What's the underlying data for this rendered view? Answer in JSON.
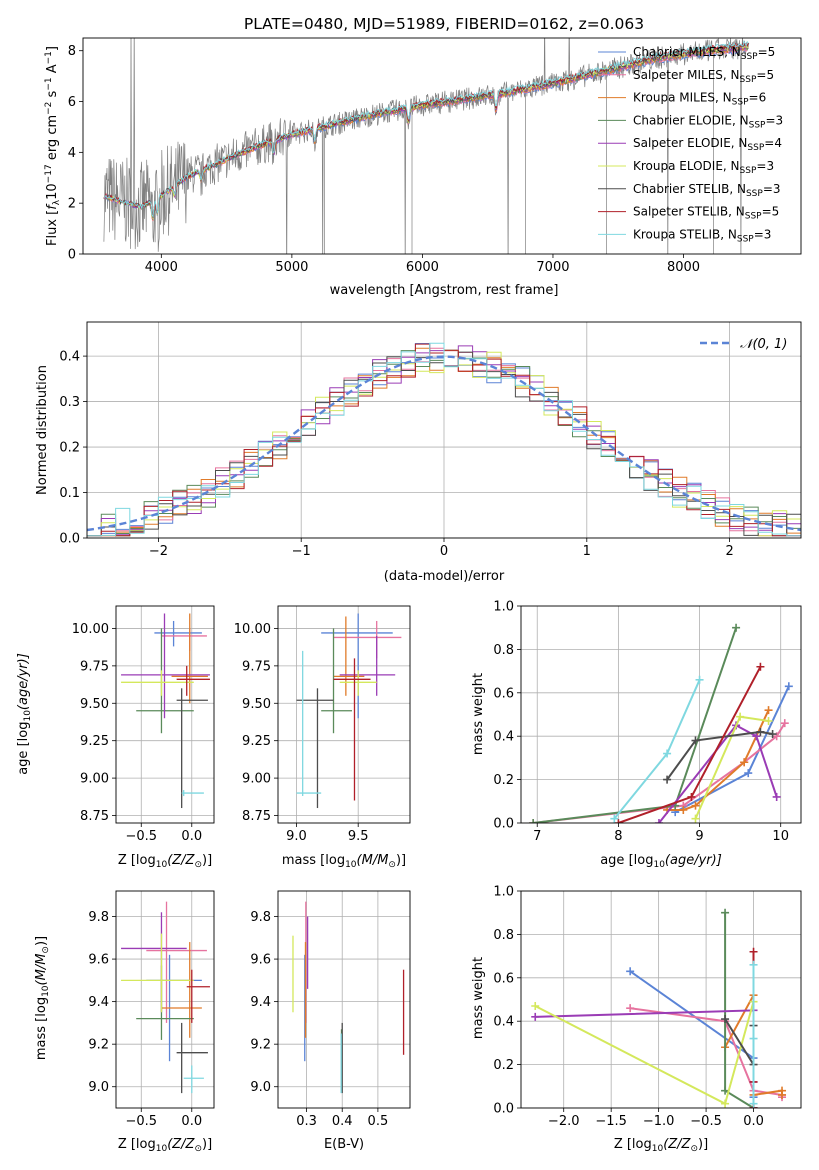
{
  "figure_title": "PLATE=0480, MJD=51989, FIBERID=0162, z=0.063",
  "models": [
    {
      "name": "Chabrier MILES",
      "nssp": "5",
      "color": "#5b84d6"
    },
    {
      "name": "Salpeter MILES",
      "nssp": "5",
      "color": "#e6739f"
    },
    {
      "name": "Kroupa MILES",
      "nssp": "6",
      "color": "#e07b2a"
    },
    {
      "name": "Chabrier ELODIE",
      "nssp": "3",
      "color": "#5a8a5a"
    },
    {
      "name": "Salpeter ELODIE",
      "nssp": "4",
      "color": "#9a3cb5"
    },
    {
      "name": "Kroupa ELODIE",
      "nssp": "3",
      "color": "#d4e85c"
    },
    {
      "name": "Chabrier STELIB",
      "nssp": "3",
      "color": "#4d4d4d"
    },
    {
      "name": "Salpeter STELIB",
      "nssp": "5",
      "color": "#b0202a"
    },
    {
      "name": "Kroupa STELIB",
      "nssp": "3",
      "color": "#7fd8e0"
    }
  ],
  "data_color": "#808080",
  "chart_data": [
    {
      "id": "spectrum",
      "type": "line",
      "xlabel": "wavelength [Angstrom, rest frame]",
      "ylabel_parts": [
        "Flux [",
        "f",
        "λ",
        "10",
        "−17",
        " erg cm",
        "−2",
        " s",
        "−1",
        " A",
        "−1",
        "]"
      ],
      "xlim": [
        3400,
        8900
      ],
      "ylim": [
        0,
        8.5
      ],
      "xticks": [
        4000,
        5000,
        6000,
        7000,
        8000
      ],
      "yticks": [
        0,
        2,
        4,
        6,
        8
      ],
      "legend_prefix": "N",
      "legend_sub": "SSP",
      "continuum": {
        "x": [
          3550,
          3700,
          3850,
          4000,
          4200,
          4400,
          4600,
          4800,
          5000,
          5200,
          5400,
          5600,
          5800,
          6000,
          6200,
          6400,
          6600,
          6800,
          7000,
          7200,
          7400,
          7600,
          7800,
          8000,
          8200,
          8400,
          8500
        ],
        "y": [
          2.3,
          2.05,
          1.85,
          2.3,
          3.05,
          3.5,
          3.95,
          4.35,
          4.7,
          4.95,
          5.2,
          5.45,
          5.65,
          5.85,
          6.0,
          6.15,
          6.3,
          6.5,
          6.7,
          6.95,
          7.2,
          7.45,
          7.7,
          7.85,
          8.0,
          8.1,
          8.15
        ]
      }
    },
    {
      "id": "residuals",
      "type": "bar",
      "xlabel": "(data-model)/error",
      "ylabel": "Normed distribution",
      "xlim": [
        -2.5,
        2.5
      ],
      "ylim": [
        0,
        0.475
      ],
      "xticks": [
        -2,
        -1,
        0,
        1,
        2
      ],
      "yticks": [
        0.0,
        0.1,
        0.2,
        0.3,
        0.4
      ],
      "legend_label": "𝒩(0, 1)",
      "gauss_color": "#5b84d6"
    },
    {
      "id": "age-vs-z",
      "type": "scatter",
      "xlabel_parts": [
        "Z [log",
        "10",
        "(Z/Z",
        "⊙",
        ")]"
      ],
      "ylabel_parts": [
        "age  [log",
        "10",
        "(age/yr)]"
      ],
      "xlim": [
        -0.75,
        0.22
      ],
      "ylim": [
        8.7,
        10.15
      ],
      "xticks": [
        -0.5,
        0.0
      ],
      "yticks": [
        8.75,
        9.0,
        9.25,
        9.5,
        9.75,
        10.0
      ],
      "points": [
        {
          "x": -0.18,
          "y": 9.97,
          "xlo": -0.37,
          "xhi": 0.1,
          "ylo": 9.88,
          "yhi": 10.05,
          "m": 0
        },
        {
          "x": -0.02,
          "y": 9.95,
          "xlo": -0.3,
          "xhi": 0.15,
          "ylo": 9.85,
          "yhi": 10.0,
          "m": 1
        },
        {
          "x": -0.02,
          "y": 9.68,
          "xlo": -0.2,
          "xhi": 0.16,
          "ylo": 9.5,
          "yhi": 10.1,
          "m": 2
        },
        {
          "x": -0.3,
          "y": 9.45,
          "xlo": -0.55,
          "xhi": 0.02,
          "ylo": 9.3,
          "yhi": 10.0,
          "m": 3
        },
        {
          "x": -0.27,
          "y": 9.69,
          "xlo": -0.7,
          "xhi": 0.18,
          "ylo": 9.4,
          "yhi": 10.1,
          "m": 4
        },
        {
          "x": -0.3,
          "y": 9.64,
          "xlo": -0.7,
          "xhi": 0.02,
          "ylo": 9.55,
          "yhi": 9.72,
          "m": 5
        },
        {
          "x": -0.1,
          "y": 9.52,
          "xlo": -0.15,
          "xhi": 0.16,
          "ylo": 8.8,
          "yhi": 9.6,
          "m": 6
        },
        {
          "x": -0.05,
          "y": 9.66,
          "xlo": -0.15,
          "xhi": 0.18,
          "ylo": 9.55,
          "yhi": 9.75,
          "m": 7
        },
        {
          "x": -0.08,
          "y": 8.9,
          "xlo": -0.1,
          "xhi": 0.12,
          "ylo": 8.88,
          "yhi": 8.92,
          "m": 8
        }
      ]
    },
    {
      "id": "age-vs-mass",
      "type": "scatter",
      "xlabel_parts": [
        "mass [log",
        "10",
        "(M/M",
        "⊙",
        ")]"
      ],
      "xlim": [
        8.85,
        9.92
      ],
      "ylim": [
        8.7,
        10.15
      ],
      "xticks": [
        9.0,
        9.5
      ],
      "yticks": [
        8.75,
        9.0,
        9.25,
        9.5,
        9.75,
        10.0
      ],
      "points": [
        {
          "x": 9.5,
          "y": 9.97,
          "xlo": 9.2,
          "xhi": 9.78,
          "ylo": 9.4,
          "yhi": 10.1,
          "m": 0
        },
        {
          "x": 9.65,
          "y": 9.94,
          "xlo": 9.3,
          "xhi": 9.85,
          "ylo": 9.8,
          "yhi": 10.05,
          "m": 1
        },
        {
          "x": 9.4,
          "y": 9.68,
          "xlo": 9.3,
          "xhi": 9.55,
          "ylo": 9.55,
          "yhi": 10.08,
          "m": 2
        },
        {
          "x": 9.3,
          "y": 9.45,
          "xlo": 9.2,
          "xhi": 9.45,
          "ylo": 9.3,
          "yhi": 10.0,
          "m": 3
        },
        {
          "x": 9.65,
          "y": 9.69,
          "xlo": 9.35,
          "xhi": 9.8,
          "ylo": 9.55,
          "yhi": 9.95,
          "m": 4
        },
        {
          "x": 9.5,
          "y": 9.64,
          "xlo": 9.35,
          "xhi": 9.65,
          "ylo": 9.55,
          "yhi": 9.72,
          "m": 5
        },
        {
          "x": 9.17,
          "y": 9.52,
          "xlo": 9.0,
          "xhi": 9.3,
          "ylo": 8.8,
          "yhi": 9.6,
          "m": 6
        },
        {
          "x": 9.47,
          "y": 9.66,
          "xlo": 9.3,
          "xhi": 9.6,
          "ylo": 8.85,
          "yhi": 9.8,
          "m": 7
        },
        {
          "x": 9.05,
          "y": 8.9,
          "xlo": 9.0,
          "xhi": 9.2,
          "ylo": 8.88,
          "yhi": 9.85,
          "m": 8
        }
      ]
    },
    {
      "id": "weight-vs-age",
      "type": "line",
      "xlabel_parts": [
        "age  [log",
        "10",
        "(age/yr)]"
      ],
      "ylabel": "mass weight",
      "xlim": [
        6.8,
        10.25
      ],
      "ylim": [
        0,
        1
      ],
      "xticks": [
        7,
        8,
        9,
        10
      ],
      "yticks": [
        0.0,
        0.2,
        0.4,
        0.6,
        0.8,
        1.0
      ],
      "series": [
        {
          "m": 0,
          "x": [
            8.7,
            9.6,
            10.1
          ],
          "y": [
            0.05,
            0.23,
            0.63
          ]
        },
        {
          "m": 1,
          "x": [
            6.95,
            8.8,
            9.55,
            9.95,
            10.05
          ],
          "y": [
            0.0,
            0.08,
            0.28,
            0.4,
            0.46
          ]
        },
        {
          "m": 2,
          "x": [
            8.6,
            8.8,
            8.95,
            9.55,
            9.85
          ],
          "y": [
            0.06,
            0.06,
            0.08,
            0.28,
            0.52
          ]
        },
        {
          "m": 3,
          "x": [
            6.95,
            8.7,
            9.45
          ],
          "y": [
            0.0,
            0.08,
            0.9
          ]
        },
        {
          "m": 4,
          "x": [
            8.5,
            9.45,
            9.7,
            9.95
          ],
          "y": [
            0.0,
            0.45,
            0.4,
            0.12
          ]
        },
        {
          "m": 5,
          "x": [
            8.95,
            9.5,
            9.85
          ],
          "y": [
            0.02,
            0.49,
            0.47
          ]
        },
        {
          "m": 6,
          "x": [
            8.6,
            8.95,
            9.75,
            9.9
          ],
          "y": [
            0.2,
            0.38,
            0.42,
            0.41
          ]
        },
        {
          "m": 7,
          "x": [
            8.0,
            8.9,
            9.75
          ],
          "y": [
            0.0,
            0.12,
            0.72
          ]
        },
        {
          "m": 8,
          "x": [
            7.95,
            8.6,
            9.0
          ],
          "y": [
            0.02,
            0.32,
            0.66
          ]
        }
      ]
    },
    {
      "id": "mass-vs-z",
      "type": "scatter",
      "xlabel_parts": [
        "Z [log",
        "10",
        "(Z/Z",
        "⊙",
        ")]"
      ],
      "ylabel_parts": [
        "mass [log",
        "10",
        "(M/M",
        "⊙",
        ")]"
      ],
      "xlim": [
        -0.75,
        0.22
      ],
      "ylim": [
        8.9,
        9.92
      ],
      "xticks": [
        -0.5,
        0.0
      ],
      "yticks": [
        9.0,
        9.2,
        9.4,
        9.6,
        9.8
      ],
      "points": [
        {
          "x": -0.22,
          "y": 9.5,
          "xlo": -0.45,
          "xhi": 0.1,
          "ylo": 9.12,
          "yhi": 9.62,
          "m": 0
        },
        {
          "x": -0.25,
          "y": 9.64,
          "xlo": -0.45,
          "xhi": 0.15,
          "ylo": 9.3,
          "yhi": 9.87,
          "m": 1
        },
        {
          "x": -0.02,
          "y": 9.37,
          "xlo": -0.3,
          "xhi": 0.1,
          "ylo": 9.23,
          "yhi": 9.68,
          "m": 2
        },
        {
          "x": -0.3,
          "y": 9.32,
          "xlo": -0.55,
          "xhi": 0.02,
          "ylo": 9.22,
          "yhi": 9.57,
          "m": 3
        },
        {
          "x": -0.3,
          "y": 9.65,
          "xlo": -0.7,
          "xhi": -0.05,
          "ylo": 9.35,
          "yhi": 9.82,
          "m": 4
        },
        {
          "x": -0.3,
          "y": 9.5,
          "xlo": -0.7,
          "xhi": 0.02,
          "ylo": 9.35,
          "yhi": 9.72,
          "m": 5
        },
        {
          "x": -0.1,
          "y": 9.16,
          "xlo": -0.15,
          "xhi": 0.16,
          "ylo": 8.97,
          "yhi": 9.3,
          "m": 6
        },
        {
          "x": 0.0,
          "y": 9.47,
          "xlo": -0.05,
          "xhi": 0.18,
          "ylo": 9.3,
          "yhi": 9.55,
          "m": 7
        },
        {
          "x": 0.0,
          "y": 9.04,
          "xlo": -0.08,
          "xhi": 0.12,
          "ylo": 8.97,
          "yhi": 9.1,
          "m": 8
        }
      ]
    },
    {
      "id": "mass-vs-ebv",
      "type": "scatter",
      "xlabel": "E(B-V)",
      "xlim": [
        0.22,
        0.59
      ],
      "ylim": [
        8.9,
        9.92
      ],
      "xticks": [
        0.3,
        0.4,
        0.5
      ],
      "yticks": [
        9.0,
        9.2,
        9.4,
        9.6,
        9.8
      ],
      "points": [
        {
          "x": 0.295,
          "y": 9.3,
          "ylo": 9.12,
          "yhi": 9.62,
          "m": 0
        },
        {
          "x": 0.298,
          "y": 9.6,
          "ylo": 9.3,
          "yhi": 9.87,
          "m": 1
        },
        {
          "x": 0.297,
          "y": 9.45,
          "ylo": 9.23,
          "yhi": 9.68,
          "m": 2
        },
        {
          "x": 0.398,
          "y": 9.1,
          "ylo": 8.98,
          "yhi": 9.27,
          "m": 3
        },
        {
          "x": 0.303,
          "y": 9.65,
          "ylo": 9.46,
          "yhi": 9.8,
          "m": 4
        },
        {
          "x": 0.262,
          "y": 9.5,
          "ylo": 9.35,
          "yhi": 9.71,
          "m": 5
        },
        {
          "x": 0.4,
          "y": 9.15,
          "ylo": 8.97,
          "yhi": 9.3,
          "m": 6
        },
        {
          "x": 0.572,
          "y": 9.35,
          "ylo": 9.15,
          "yhi": 9.55,
          "m": 7
        },
        {
          "x": 0.397,
          "y": 9.1,
          "ylo": 8.97,
          "yhi": 9.25,
          "m": 8
        }
      ]
    },
    {
      "id": "weight-vs-z",
      "type": "line",
      "xlabel_parts": [
        "Z [log",
        "10",
        "(Z/Z",
        "⊙",
        ")]"
      ],
      "ylabel": "mass weight",
      "xlim": [
        -2.45,
        0.5
      ],
      "ylim": [
        0,
        1
      ],
      "xticks": [
        -2.0,
        -1.5,
        -1.0,
        -0.5,
        0.0
      ],
      "yticks": [
        0.0,
        0.2,
        0.4,
        0.6,
        0.8,
        1.0
      ],
      "series": [
        {
          "m": 0,
          "x": [
            -1.3,
            0.0,
            0.0
          ],
          "y": [
            0.63,
            0.23,
            0.05
          ]
        },
        {
          "m": 1,
          "x": [
            -1.3,
            -0.3,
            0.0,
            0.3,
            0.3
          ],
          "y": [
            0.46,
            0.4,
            0.08,
            0.06,
            0.05
          ]
        },
        {
          "m": 2,
          "x": [
            -0.3,
            0.0,
            0.0,
            0.3,
            0.3
          ],
          "y": [
            0.28,
            0.52,
            0.06,
            0.08,
            0.06
          ]
        },
        {
          "m": 3,
          "x": [
            -0.3,
            -0.3,
            0.0
          ],
          "y": [
            0.9,
            0.08,
            0.0
          ]
        },
        {
          "m": 4,
          "x": [
            -2.3,
            0.0,
            0.0,
            0.0
          ],
          "y": [
            0.42,
            0.45,
            0.12,
            0.0
          ]
        },
        {
          "m": 5,
          "x": [
            -2.3,
            -0.3,
            0.0
          ],
          "y": [
            0.47,
            0.02,
            0.49
          ]
        },
        {
          "m": 6,
          "x": [
            -0.3,
            0.0,
            0.0,
            0.0
          ],
          "y": [
            0.41,
            0.2,
            0.38,
            0.0
          ]
        },
        {
          "m": 7,
          "x": [
            0.0,
            0.0,
            0.0
          ],
          "y": [
            0.72,
            0.12,
            0.0
          ]
        },
        {
          "m": 8,
          "x": [
            0.0,
            0.0,
            0.0
          ],
          "y": [
            0.66,
            0.32,
            0.02
          ]
        }
      ]
    }
  ]
}
